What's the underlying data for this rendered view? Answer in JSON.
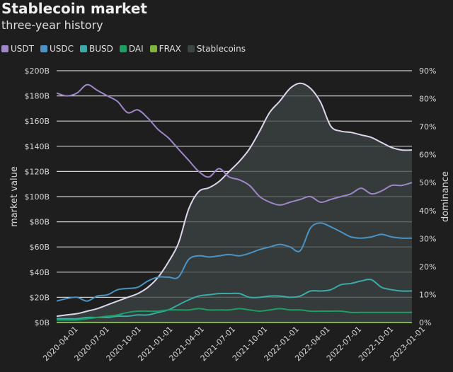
{
  "chart_data": {
    "type": "line",
    "title": "Stablecoin market",
    "subtitle": "three-year history",
    "ylabel": "market value",
    "ylabel_right": "dominance",
    "ylim": [
      0,
      200
    ],
    "ylim_right": [
      0,
      90
    ],
    "yticks": [
      "$0B",
      "$20B",
      "$40B",
      "$60B",
      "$80B",
      "$100B",
      "$120B",
      "$140B",
      "$160B",
      "$180B",
      "$200B"
    ],
    "yticks_right": [
      "0%",
      "10%",
      "20%",
      "30%",
      "40%",
      "50%",
      "60%",
      "70%",
      "80%",
      "90%"
    ],
    "xticks": [
      {
        "label": "2020-04-01",
        "t": 0.053
      },
      {
        "label": "2020-07-01",
        "t": 0.141
      },
      {
        "label": "2020-10-01",
        "t": 0.231
      },
      {
        "label": "2021-01-01",
        "t": 0.32
      },
      {
        "label": "2021-04-01",
        "t": 0.408
      },
      {
        "label": "2021-07-01",
        "t": 0.496
      },
      {
        "label": "2021-10-01",
        "t": 0.586
      },
      {
        "label": "2022-01-01",
        "t": 0.675
      },
      {
        "label": "2022-04-01",
        "t": 0.762
      },
      {
        "label": "2022-07-01",
        "t": 0.851
      },
      {
        "label": "2022-10-01",
        "t": 0.941
      },
      {
        "label": "2023-01-01",
        "t": 1.03
      }
    ],
    "x": [
      "2020-03-01",
      "2020-04-01",
      "2020-05-01",
      "2020-06-01",
      "2020-07-01",
      "2020-08-01",
      "2020-09-01",
      "2020-10-01",
      "2020-11-01",
      "2020-12-01",
      "2021-01-01",
      "2021-02-01",
      "2021-03-01",
      "2021-04-01",
      "2021-05-01",
      "2021-06-01",
      "2021-07-01",
      "2021-08-01",
      "2021-09-01",
      "2021-10-01",
      "2021-11-01",
      "2021-12-01",
      "2022-01-01",
      "2022-02-01",
      "2022-03-01",
      "2022-04-01",
      "2022-05-01",
      "2022-06-01",
      "2022-07-01",
      "2022-08-01",
      "2022-09-01",
      "2022-10-01",
      "2022-11-01",
      "2022-12-01",
      "2023-01-01",
      "2023-02-01"
    ],
    "series": [
      {
        "name": "USDT",
        "color": "#9e86c9",
        "axis": "right",
        "values": [
          82,
          81,
          82,
          85,
          83,
          81,
          79,
          75,
          76,
          73,
          69,
          66,
          62,
          58,
          54,
          52,
          55,
          52,
          51,
          49,
          45,
          43,
          42,
          43,
          44,
          45,
          43,
          44,
          45,
          46,
          48,
          46,
          47,
          49,
          49,
          50
        ]
      },
      {
        "name": "USDC",
        "color": "#4a93c4",
        "axis": "left",
        "values": [
          17,
          19,
          20,
          17,
          21,
          22,
          26,
          27,
          28,
          33,
          36,
          36,
          36,
          50,
          53,
          52,
          53,
          54,
          53,
          55,
          58,
          60,
          62,
          60,
          57,
          75,
          79,
          76,
          72,
          68,
          67,
          68,
          70,
          68,
          67,
          67
        ]
      },
      {
        "name": "BUSD",
        "color": "#3aaba6",
        "axis": "left",
        "values": [
          3,
          3,
          3,
          4,
          4,
          4,
          5,
          5,
          6,
          6,
          8,
          10,
          14,
          18,
          21,
          22,
          23,
          23,
          23,
          20,
          20,
          21,
          21,
          20,
          21,
          25,
          25,
          26,
          30,
          31,
          33,
          34,
          28,
          26,
          25,
          25
        ]
      },
      {
        "name": "DAI",
        "color": "#1d9e63",
        "axis": "left",
        "values": [
          2,
          2,
          2,
          3,
          4,
          5,
          6,
          8,
          9,
          9,
          9,
          10,
          10,
          10,
          11,
          10,
          10,
          10,
          11,
          10,
          9,
          10,
          11,
          10,
          10,
          9,
          9,
          9,
          9,
          8,
          8,
          8,
          8,
          8,
          8,
          8
        ]
      },
      {
        "name": "FRAX",
        "color": "#7fb33c",
        "axis": "left",
        "values": [
          0,
          0,
          0,
          0,
          0,
          0,
          0,
          0,
          0,
          0,
          0,
          0,
          0,
          0,
          0,
          0,
          0,
          0,
          0,
          0,
          0,
          0,
          0,
          0,
          0,
          0,
          0,
          0,
          0,
          0,
          0,
          0,
          0,
          0,
          0,
          0
        ]
      },
      {
        "name": "Stablecoins",
        "color": "#3d4446",
        "axis": "left",
        "fill": true,
        "line_color": "#dcd6ea",
        "values": [
          5,
          6,
          7,
          9,
          11,
          14,
          17,
          20,
          23,
          28,
          36,
          48,
          63,
          90,
          104,
          107,
          112,
          120,
          128,
          138,
          152,
          167,
          176,
          186,
          190,
          186,
          175,
          156,
          152,
          151,
          149,
          147,
          143,
          139,
          137,
          137
        ]
      }
    ]
  }
}
